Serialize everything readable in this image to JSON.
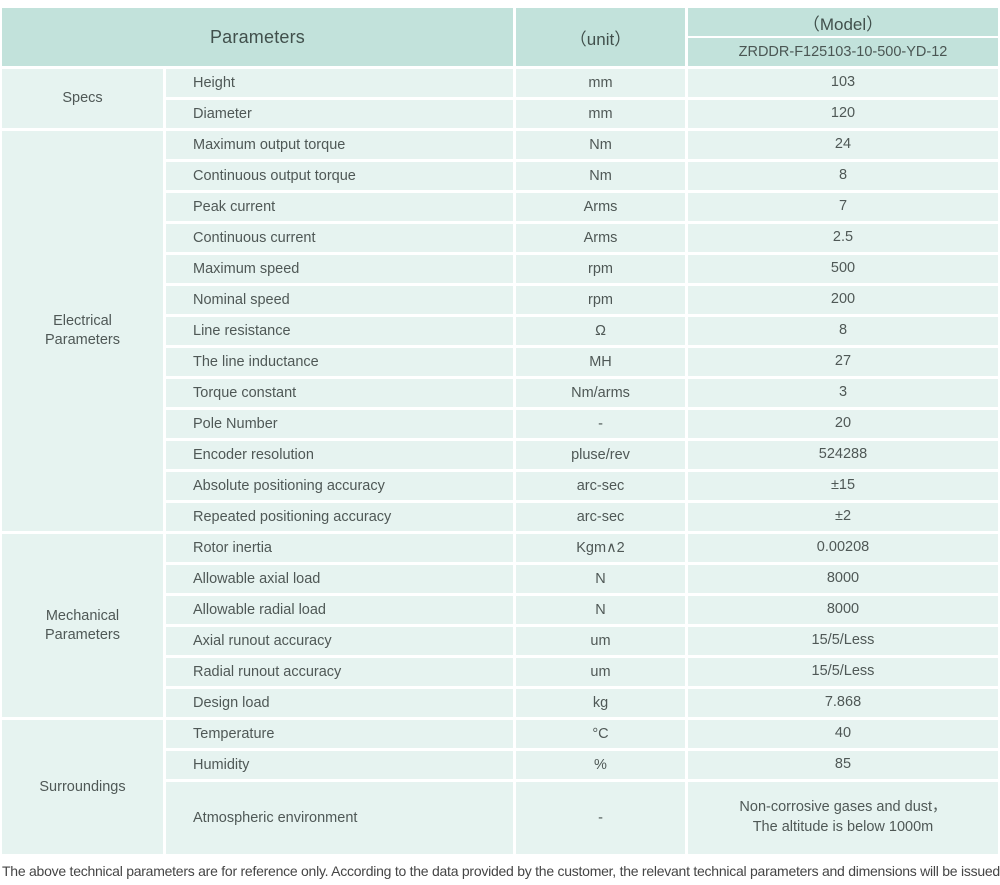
{
  "header": {
    "parameters_label": "Parameters",
    "unit_label": "（unit）",
    "model_label": "（Model）",
    "model_value": "ZRDDR-F125103-10-500-YD-12"
  },
  "sections": [
    {
      "label": "Specs",
      "rows": [
        {
          "name": "Height",
          "unit": "mm",
          "value": "103"
        },
        {
          "name": "Diameter",
          "unit": "mm",
          "value": "120"
        }
      ]
    },
    {
      "label": "Electrical\nParameters",
      "rows": [
        {
          "name": "Maximum output torque",
          "unit": "Nm",
          "value": "24"
        },
        {
          "name": "Continuous output torque",
          "unit": "Nm",
          "value": "8"
        },
        {
          "name": "Peak current",
          "unit": "Arms",
          "value": "7"
        },
        {
          "name": "Continuous current",
          "unit": "Arms",
          "value": "2.5"
        },
        {
          "name": "Maximum speed",
          "unit": "rpm",
          "value": "500"
        },
        {
          "name": "Nominal speed",
          "unit": "rpm",
          "value": "200"
        },
        {
          "name": "Line resistance",
          "unit": "Ω",
          "value": "8"
        },
        {
          "name": "The line inductance",
          "unit": "MH",
          "value": "27"
        },
        {
          "name": "Torque constant",
          "unit": "Nm/arms",
          "value": "3"
        },
        {
          "name": "Pole Number",
          "unit": "-",
          "value": "20"
        },
        {
          "name": "Encoder resolution",
          "unit": "pluse/rev",
          "value": "524288"
        },
        {
          "name": "Absolute positioning accuracy",
          "unit": "arc-sec",
          "value": "±15"
        },
        {
          "name": "Repeated positioning accuracy",
          "unit": "arc-sec",
          "value": "±2"
        }
      ]
    },
    {
      "label": "Mechanical\nParameters",
      "rows": [
        {
          "name": "Rotor inertia",
          "unit": "Kgm∧2",
          "value": "0.00208"
        },
        {
          "name": "Allowable axial load",
          "unit": "N",
          "value": "8000"
        },
        {
          "name": "Allowable radial load",
          "unit": "N",
          "value": "8000"
        },
        {
          "name": "Axial runout accuracy",
          "unit": "um",
          "value": "15/5/Less"
        },
        {
          "name": "Radial runout accuracy",
          "unit": "um",
          "value": "15/5/Less"
        },
        {
          "name": "Design load",
          "unit": "kg",
          "value": "7.868"
        }
      ]
    },
    {
      "label": "Surroundings",
      "rows": [
        {
          "name": "Temperature",
          "unit": "°C",
          "value": "40"
        },
        {
          "name": "Humidity",
          "unit": "%",
          "value": "85"
        },
        {
          "name": "Atmospheric environment",
          "unit": "-",
          "value": "Non-corrosive gases and dust，\nThe altitude is below 1000m"
        }
      ]
    }
  ],
  "footer": {
    "note": "The above technical parameters are for reference only. According to the data provided by the customer, the relevant technical parameters and dimensions will be issued."
  },
  "colors": {
    "header_bg": "#c2e2db",
    "cell_bg": "#e6f3f0"
  }
}
